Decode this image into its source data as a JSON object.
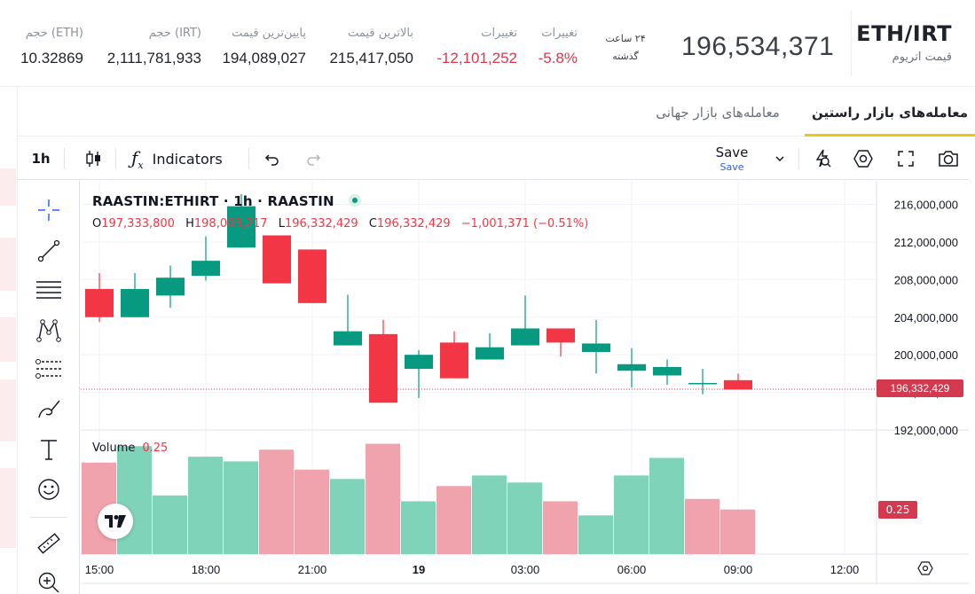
{
  "header": {
    "symbol": "ETH/IRT",
    "name": "قیمت اتریوم",
    "last_price": "196,534,371",
    "period_line1": "۲۴ ساعت",
    "period_line2": "گذشته",
    "stats": [
      {
        "label": "تغییرات",
        "value": "-5.8%",
        "negative": true
      },
      {
        "label": "تغییرات",
        "value": "-12,101,252",
        "negative": true
      },
      {
        "label": "بالاترین قیمت",
        "value": "215,417,050",
        "negative": false
      },
      {
        "label": "پایین‌ترین قیمت",
        "value": "194,089,027",
        "negative": false
      },
      {
        "label": "حجم (IRT)",
        "value": "2,111,781,933",
        "negative": false
      },
      {
        "label": "حجم (ETH)",
        "value": "10.32869",
        "negative": false
      }
    ]
  },
  "tabs": [
    {
      "label": "معامله‌های بازار راستین",
      "active": true
    },
    {
      "label": "معامله‌های بازار جهانی",
      "active": false
    }
  ],
  "toolbar": {
    "interval": "1h",
    "indicators_label": "Indicators",
    "save_label": "Save",
    "save_sub": "Save"
  },
  "chart": {
    "title": "RAASTIN:ETHIRT · 1h · RAASTIN",
    "ohlc": {
      "o_label": "O",
      "o": "197,333,800",
      "h_label": "H",
      "h": "198,003,217",
      "l_label": "L",
      "l": "196,332,429",
      "c_label": "C",
      "c": "196,332,429",
      "change": "−1,001,371 (−0.51%)"
    },
    "volume_label": "Volume",
    "volume_value": "0.25",
    "last_price_tag": "196,332,429",
    "volume_tag": "0.25",
    "colors": {
      "up": "#089981",
      "down": "#f23645",
      "up_vol": "#7fd3b9",
      "down_vol": "#f0a3ac"
    }
  },
  "chart_data": {
    "type": "candlestick",
    "price_axis_labels": [
      "216,000,000",
      "212,000,000",
      "208,000,000",
      "204,000,000",
      "200,000,000",
      "196,000,000",
      "192,000,000"
    ],
    "price_ticks": [
      216000000,
      212000000,
      208000000,
      204000000,
      200000000,
      196000000,
      192000000
    ],
    "ylim": [
      192000000,
      218500000
    ],
    "x_ticks": [
      "15:00",
      "18:00",
      "21:00",
      "19",
      "03:00",
      "06:00",
      "09:00",
      "12:00"
    ],
    "candles": [
      {
        "o": 207000000,
        "h": 208700000,
        "l": 203500000,
        "c": 204000000
      },
      {
        "o": 204000000,
        "h": 208700000,
        "l": 204000000,
        "c": 207000000
      },
      {
        "o": 206300000,
        "h": 209500000,
        "l": 205000000,
        "c": 208200000
      },
      {
        "o": 208400000,
        "h": 212600000,
        "l": 207900000,
        "c": 210000000
      },
      {
        "o": 211400000,
        "h": 217100000,
        "l": 211400000,
        "c": 215800000
      },
      {
        "o": 212700000,
        "h": 212700000,
        "l": 207600000,
        "c": 207600000
      },
      {
        "o": 211200000,
        "h": 211200000,
        "l": 205500000,
        "c": 205500000
      },
      {
        "o": 201000000,
        "h": 206400000,
        "l": 201000000,
        "c": 202500000
      },
      {
        "o": 202200000,
        "h": 203700000,
        "l": 194900000,
        "c": 194900000
      },
      {
        "o": 198500000,
        "h": 200500000,
        "l": 195400000,
        "c": 200000000
      },
      {
        "o": 201300000,
        "h": 202500000,
        "l": 197500000,
        "c": 197500000
      },
      {
        "o": 199500000,
        "h": 202300000,
        "l": 199500000,
        "c": 200800000
      },
      {
        "o": 201000000,
        "h": 206300000,
        "l": 201000000,
        "c": 202800000
      },
      {
        "o": 202800000,
        "h": 202800000,
        "l": 199800000,
        "c": 201300000
      },
      {
        "o": 200300000,
        "h": 203700000,
        "l": 198000000,
        "c": 201200000
      },
      {
        "o": 198300000,
        "h": 200700000,
        "l": 196500000,
        "c": 199000000
      },
      {
        "o": 197800000,
        "h": 199500000,
        "l": 196800000,
        "c": 198700000
      },
      {
        "o": 197000000,
        "h": 198500000,
        "l": 195800000,
        "c": 197000000
      },
      {
        "o": 197300000,
        "h": 198000000,
        "l": 196300000,
        "c": 196300000
      }
    ],
    "volume_bars": [
      {
        "v": 0.78,
        "up": false
      },
      {
        "v": 0.92,
        "up": true
      },
      {
        "v": 0.5,
        "up": true
      },
      {
        "v": 0.83,
        "up": true
      },
      {
        "v": 0.79,
        "up": true
      },
      {
        "v": 0.89,
        "up": false
      },
      {
        "v": 0.72,
        "up": false
      },
      {
        "v": 0.64,
        "up": true
      },
      {
        "v": 0.94,
        "up": false
      },
      {
        "v": 0.45,
        "up": true
      },
      {
        "v": 0.58,
        "up": false
      },
      {
        "v": 0.67,
        "up": true
      },
      {
        "v": 0.61,
        "up": true
      },
      {
        "v": 0.45,
        "up": false
      },
      {
        "v": 0.33,
        "up": true
      },
      {
        "v": 0.67,
        "up": true
      },
      {
        "v": 0.82,
        "up": true
      },
      {
        "v": 0.47,
        "up": false
      },
      {
        "v": 0.38,
        "up": false
      }
    ],
    "volume_range": [
      0,
      1.05
    ],
    "last_price": 196332429,
    "grid": true
  }
}
